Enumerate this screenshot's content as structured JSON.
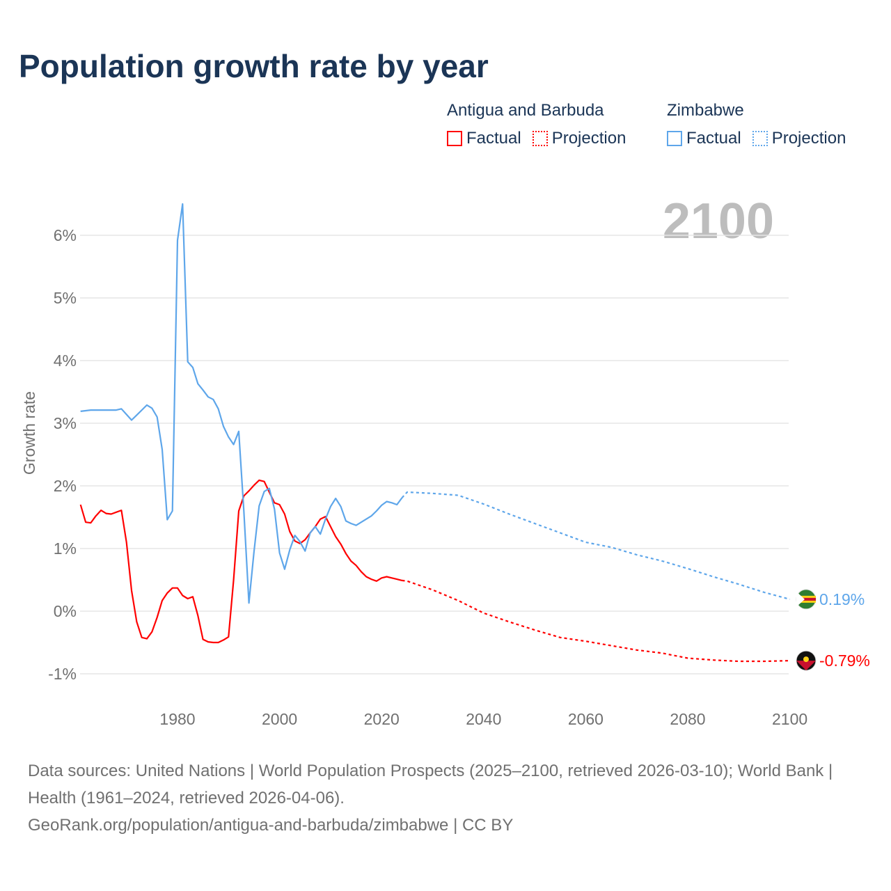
{
  "chart_data": {
    "type": "line",
    "title": "Population growth rate by year",
    "ylabel": "Growth rate",
    "xlabel": "",
    "ylim": [
      -1.2,
      6.6
    ],
    "xlim": [
      1961,
      2100
    ],
    "yticks": [
      -1,
      0,
      1,
      2,
      3,
      4,
      5,
      6
    ],
    "ytick_labels": [
      "-1%",
      "0%",
      "1%",
      "2%",
      "3%",
      "4%",
      "5%",
      "6%"
    ],
    "xticks": [
      1980,
      2000,
      2020,
      2040,
      2060,
      2080,
      2100
    ],
    "xtick_labels": [
      "1980",
      "2000",
      "2020",
      "2040",
      "2060",
      "2080",
      "2100"
    ],
    "grid": true,
    "year_label": "2100",
    "legend": {
      "placement": "top-right",
      "groups": [
        {
          "country": "Antigua and Barbuda",
          "factual": "Factual",
          "projection": "Projection",
          "color": "#ff0000"
        },
        {
          "country": "Zimbabwe",
          "factual": "Factual",
          "projection": "Projection",
          "color": "#5ea6ea"
        }
      ]
    },
    "series": [
      {
        "name": "Antigua and Barbuda",
        "color": "#ff0000",
        "end_label": "-0.79%",
        "factual": {
          "x": [
            1961,
            1962,
            1963,
            1964,
            1965,
            1966,
            1967,
            1968,
            1969,
            1970,
            1971,
            1972,
            1973,
            1974,
            1975,
            1976,
            1977,
            1978,
            1979,
            1980,
            1981,
            1982,
            1983,
            1984,
            1985,
            1986,
            1987,
            1988,
            1989,
            1990,
            1991,
            1992,
            1993,
            1994,
            1995,
            1996,
            1997,
            1998,
            1999,
            2000,
            2001,
            2002,
            2003,
            2004,
            2005,
            2006,
            2007,
            2008,
            2009,
            2010,
            2011,
            2012,
            2013,
            2014,
            2015,
            2016,
            2017,
            2018,
            2019,
            2020,
            2021,
            2022,
            2023,
            2024
          ],
          "y": [
            1.7,
            1.42,
            1.41,
            1.52,
            1.61,
            1.56,
            1.55,
            1.58,
            1.61,
            1.1,
            0.33,
            -0.17,
            -0.42,
            -0.44,
            -0.33,
            -0.1,
            0.17,
            0.29,
            0.37,
            0.37,
            0.25,
            0.2,
            0.23,
            -0.07,
            -0.45,
            -0.49,
            -0.5,
            -0.5,
            -0.46,
            -0.41,
            0.5,
            1.6,
            1.84,
            1.92,
            2.01,
            2.09,
            2.07,
            1.9,
            1.73,
            1.7,
            1.55,
            1.27,
            1.12,
            1.08,
            1.14,
            1.25,
            1.35,
            1.47,
            1.51,
            1.35,
            1.19,
            1.07,
            0.92,
            0.8,
            0.73,
            0.63,
            0.55,
            0.51,
            0.48,
            0.53,
            0.55,
            0.53,
            0.51,
            0.49
          ]
        },
        "projection": {
          "x": [
            2024,
            2025,
            2030,
            2035,
            2040,
            2045,
            2050,
            2055,
            2060,
            2065,
            2070,
            2075,
            2080,
            2085,
            2090,
            2095,
            2100
          ],
          "y": [
            0.49,
            0.48,
            0.34,
            0.17,
            -0.03,
            -0.17,
            -0.3,
            -0.42,
            -0.48,
            -0.55,
            -0.62,
            -0.67,
            -0.75,
            -0.78,
            -0.8,
            -0.8,
            -0.79
          ]
        }
      },
      {
        "name": "Zimbabwe",
        "color": "#5ea6ea",
        "end_label": "0.19%",
        "factual": {
          "x": [
            1961,
            1962,
            1963,
            1964,
            1965,
            1966,
            1967,
            1968,
            1969,
            1970,
            1971,
            1972,
            1973,
            1974,
            1975,
            1976,
            1977,
            1978,
            1979,
            1980,
            1981,
            1982,
            1983,
            1984,
            1985,
            1986,
            1987,
            1988,
            1989,
            1990,
            1991,
            1992,
            1993,
            1994,
            1995,
            1996,
            1997,
            1998,
            1999,
            2000,
            2001,
            2002,
            2003,
            2004,
            2005,
            2006,
            2007,
            2008,
            2009,
            2010,
            2011,
            2012,
            2013,
            2014,
            2015,
            2016,
            2017,
            2018,
            2019,
            2020,
            2021,
            2022,
            2023,
            2024
          ],
          "y": [
            3.19,
            3.2,
            3.21,
            3.21,
            3.21,
            3.21,
            3.21,
            3.21,
            3.23,
            3.14,
            3.05,
            3.13,
            3.21,
            3.29,
            3.24,
            3.1,
            2.58,
            1.46,
            1.6,
            5.92,
            6.5,
            3.98,
            3.89,
            3.63,
            3.53,
            3.42,
            3.38,
            3.23,
            2.95,
            2.78,
            2.66,
            2.87,
            1.6,
            0.13,
            0.95,
            1.68,
            1.91,
            1.96,
            1.63,
            0.93,
            0.67,
            0.98,
            1.21,
            1.11,
            0.96,
            1.25,
            1.35,
            1.23,
            1.47,
            1.67,
            1.8,
            1.67,
            1.44,
            1.4,
            1.37,
            1.42,
            1.47,
            1.52,
            1.6,
            1.69,
            1.75,
            1.73,
            1.7,
            1.81
          ]
        },
        "projection": {
          "x": [
            2024,
            2025,
            2030,
            2035,
            2040,
            2045,
            2050,
            2055,
            2060,
            2065,
            2070,
            2075,
            2080,
            2085,
            2090,
            2095,
            2100
          ],
          "y": [
            1.81,
            1.9,
            1.88,
            1.85,
            1.71,
            1.55,
            1.4,
            1.25,
            1.1,
            1.02,
            0.9,
            0.8,
            0.68,
            0.55,
            0.43,
            0.3,
            0.19
          ]
        }
      }
    ]
  },
  "footer": {
    "source": "Data sources: United Nations | World Population Prospects (2025–2100, retrieved 2026-03-10); World Bank | Health (1961–2024, retrieved 2026-04-06).",
    "link": "GeoRank.org/population/antigua-and-barbuda/zimbabwe | CC BY"
  }
}
